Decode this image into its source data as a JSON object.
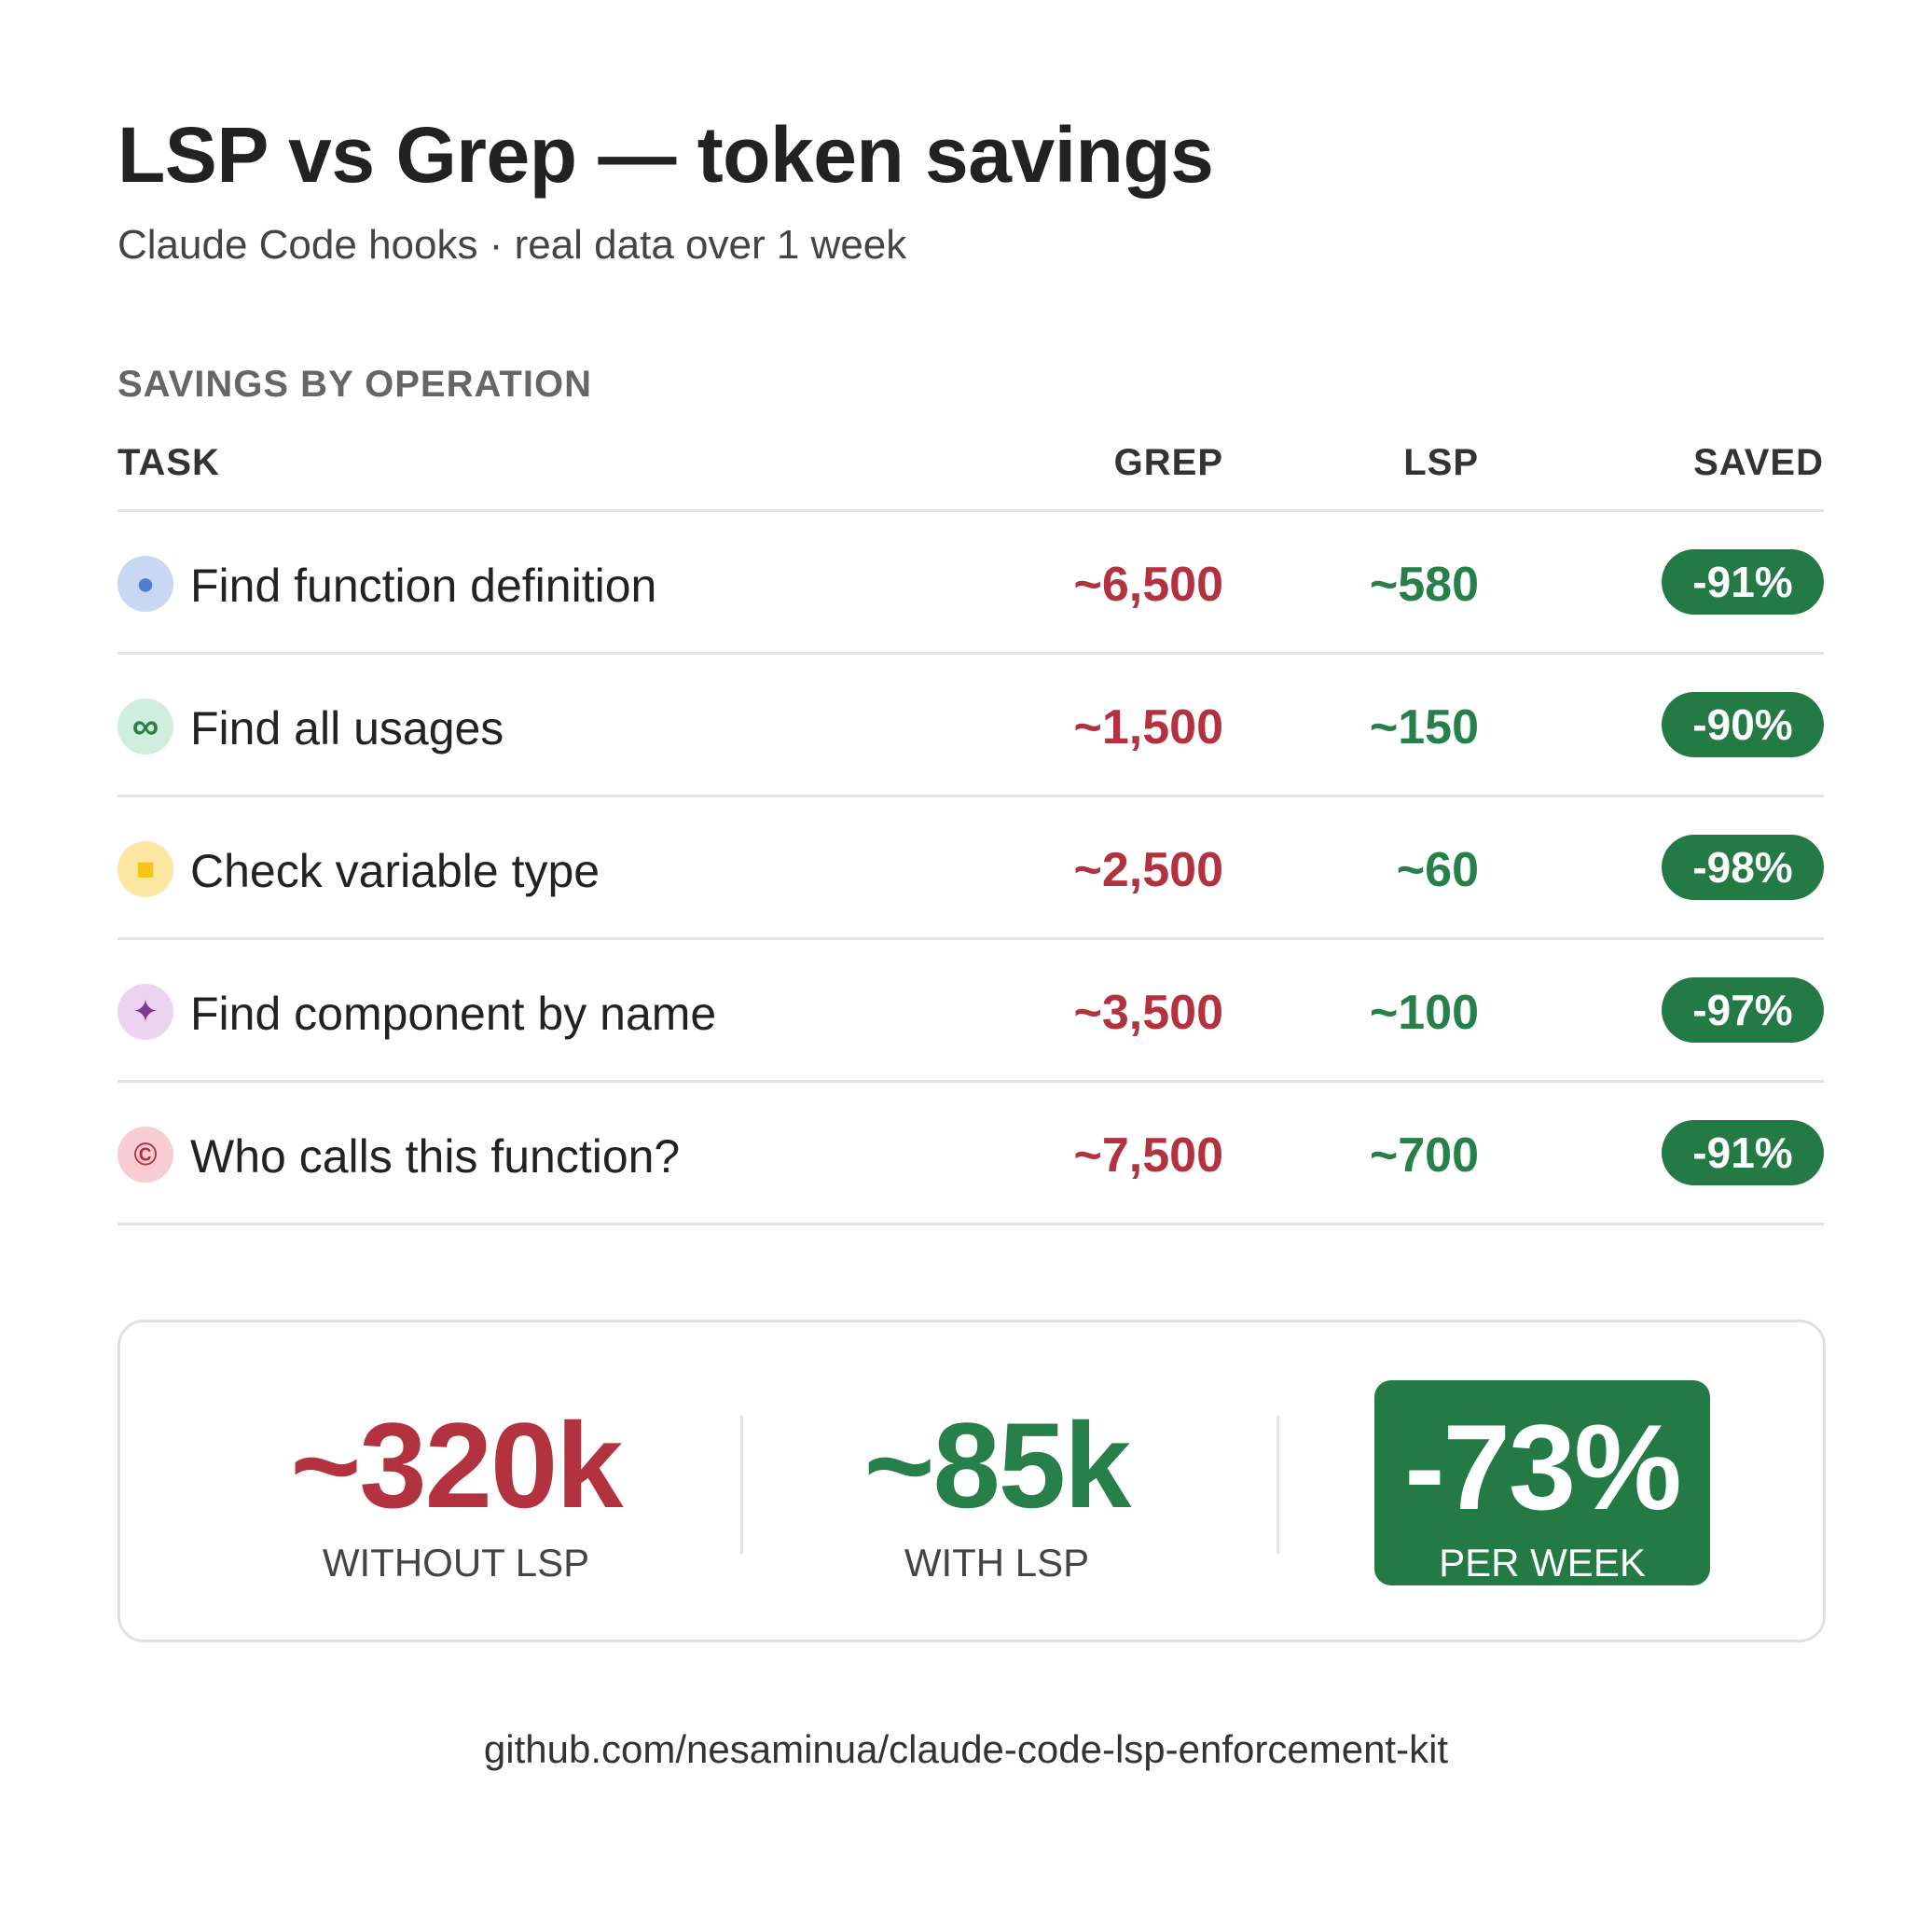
{
  "header": {
    "title": "LSP vs Grep — token savings",
    "subtitle": "Claude Code hooks · real data over 1 week"
  },
  "section_label": "SAVINGS BY OPERATION",
  "columns": {
    "task": "TASK",
    "grep": "GREP",
    "lsp": "LSP",
    "saved": "SAVED"
  },
  "colors": {
    "grep": "#b3323f",
    "lsp": "#27804a",
    "saved_bg": "#237a45"
  },
  "rows": [
    {
      "task": "Find function definition",
      "grep": "~6,500",
      "lsp": "~580",
      "saved": "-91%",
      "icon": "blue-dot-icon",
      "icon_glyph": "●",
      "icon_bg": "#c9d8f2",
      "icon_fg": "#4f7fd0"
    },
    {
      "task": "Find all usages",
      "grep": "~1,500",
      "lsp": "~150",
      "saved": "-90%",
      "icon": "infinity-icon",
      "icon_glyph": "∞",
      "icon_bg": "#cfeedd",
      "icon_fg": "#2e7d4b"
    },
    {
      "task": "Check variable type",
      "grep": "~2,500",
      "lsp": "~60",
      "saved": "-98%",
      "icon": "yellow-square-icon",
      "icon_glyph": "■",
      "icon_bg": "#fbe6a2",
      "icon_fg": "#f5c518"
    },
    {
      "task": "Find component by name",
      "grep": "~3,500",
      "lsp": "~100",
      "saved": "-97%",
      "icon": "sparkle-icon",
      "icon_glyph": "✦",
      "icon_bg": "#ecd4f1",
      "icon_fg": "#7b3a9a"
    },
    {
      "task": "Who calls this function?",
      "grep": "~7,500",
      "lsp": "~700",
      "saved": "-91%",
      "icon": "caller-icon",
      "icon_glyph": "©",
      "icon_bg": "#f7cdd3",
      "icon_fg": "#b3323f"
    }
  ],
  "summary": {
    "without_value": "~320k",
    "without_label": "WITHOUT LSP",
    "with_value": "~85k",
    "with_label": "WITH LSP",
    "saved_value": "-73%",
    "saved_label": "PER WEEK"
  },
  "footer": "github.com/nesaminua/claude-code-lsp-enforcement-kit",
  "chart_data": {
    "type": "table",
    "title": "LSP vs Grep — token savings",
    "subtitle": "Claude Code hooks · real data over 1 week",
    "columns": [
      "TASK",
      "GREP",
      "LSP",
      "SAVED"
    ],
    "rows": [
      [
        "Find function definition",
        6500,
        580,
        -91
      ],
      [
        "Find all usages",
        1500,
        150,
        -90
      ],
      [
        "Check variable type",
        2500,
        60,
        -98
      ],
      [
        "Find component by name",
        3500,
        100,
        -97
      ],
      [
        "Who calls this function?",
        7500,
        700,
        -91
      ]
    ],
    "totals": {
      "without_lsp": 320000,
      "with_lsp": 85000,
      "saved_percent_per_week": -73
    }
  }
}
